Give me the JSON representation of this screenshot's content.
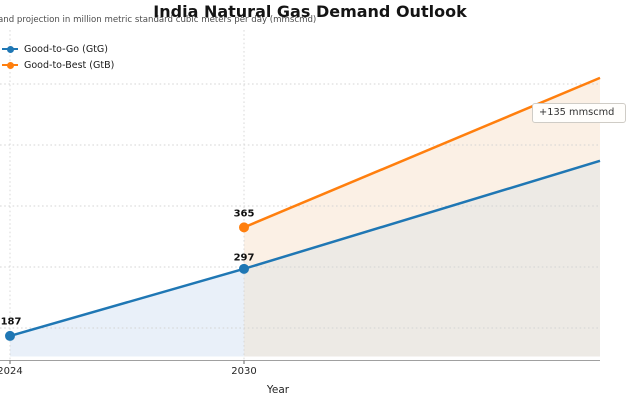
{
  "page": {
    "background": "#ffffff"
  },
  "chart_data": {
    "type": "line",
    "title": "India Natural Gas Demand Outlook",
    "subtitle_visible": "and projection in million metric standard cubic meters per day (mmscmd)",
    "xlabel": "Year",
    "x_ticks_visible": [
      2024,
      2030
    ],
    "x_right_edge_year_approx": 2039,
    "y_gridline_values": [
      200,
      300,
      400,
      500,
      600
    ],
    "grid_style": "dashed",
    "legend_position": "upper-left",
    "series": [
      {
        "name": "Good-to-Go (GtG)",
        "color": "#1f77b4",
        "points": [
          {
            "year": 2024,
            "value": 187
          },
          {
            "year": 2030,
            "value": 297
          }
        ],
        "value_at_right_edge_approx": 474,
        "fill_color_2024_2030": "#e9f0f9",
        "fill_color_after_2030": "#edeae5"
      },
      {
        "name": "Good-to-Best (GtB)",
        "color": "#ff7f0e",
        "points": [
          {
            "year": 2030,
            "value": 365
          }
        ],
        "value_at_right_edge_approx": 610,
        "band_fill_color": "#fbf0e5"
      }
    ],
    "annotation": {
      "text": "+135 mmscmd"
    },
    "axis_color": "#a0a0a0",
    "grid_color": "#d4d4d4"
  }
}
